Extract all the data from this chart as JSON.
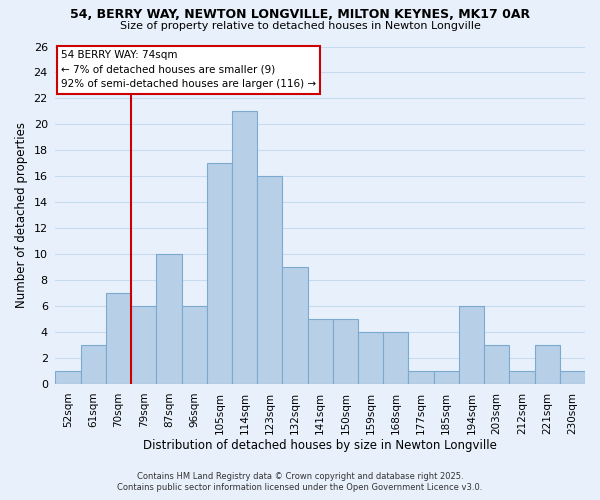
{
  "title": "54, BERRY WAY, NEWTON LONGVILLE, MILTON KEYNES, MK17 0AR",
  "subtitle": "Size of property relative to detached houses in Newton Longville",
  "xlabel": "Distribution of detached houses by size in Newton Longville",
  "ylabel": "Number of detached properties",
  "bin_labels": [
    "52sqm",
    "61sqm",
    "70sqm",
    "79sqm",
    "87sqm",
    "96sqm",
    "105sqm",
    "114sqm",
    "123sqm",
    "132sqm",
    "141sqm",
    "150sqm",
    "159sqm",
    "168sqm",
    "177sqm",
    "185sqm",
    "194sqm",
    "203sqm",
    "212sqm",
    "221sqm",
    "230sqm"
  ],
  "bar_values": [
    1,
    3,
    7,
    6,
    10,
    6,
    17,
    21,
    16,
    9,
    5,
    5,
    4,
    4,
    1,
    1,
    6,
    3,
    1,
    3,
    1
  ],
  "bar_color": "#b8cfe8",
  "bar_edge_color": "#7aaad0",
  "grid_color": "#c5dcf0",
  "background_color": "#e8f1fb",
  "vline_x": 2.5,
  "vline_color": "#cc0000",
  "annotation_title": "54 BERRY WAY: 74sqm",
  "annotation_line1": "← 7% of detached houses are smaller (9)",
  "annotation_line2": "92% of semi-detached houses are larger (116) →",
  "annotation_box_facecolor": "#ffffff",
  "annotation_box_edgecolor": "#cc0000",
  "ylim": [
    0,
    26
  ],
  "yticks": [
    0,
    2,
    4,
    6,
    8,
    10,
    12,
    14,
    16,
    18,
    20,
    22,
    24,
    26
  ],
  "footer1": "Contains HM Land Registry data © Crown copyright and database right 2025.",
  "footer2": "Contains public sector information licensed under the Open Government Licence v3.0."
}
